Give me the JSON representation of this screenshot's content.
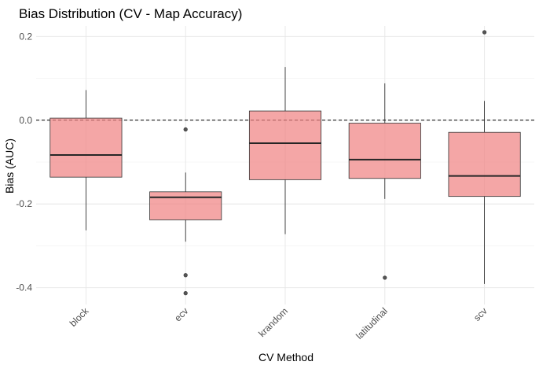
{
  "chart_data": {
    "type": "box",
    "title": "Bias Distribution (CV - Map Accuracy)",
    "xlabel": "CV Method",
    "ylabel": "Bias (AUC)",
    "ylim": [
      -0.44,
      0.225
    ],
    "yticks": [
      0.2,
      0.0,
      -0.2,
      -0.4
    ],
    "ytick_labels": [
      "0.2",
      "0.0",
      "-0.2",
      "-0.4"
    ],
    "reference_line": 0.0,
    "grid": true,
    "fill_color": "#f08080",
    "categories": [
      "block",
      "ecv",
      "krandom",
      "latitudinal",
      "scv"
    ],
    "boxes": [
      {
        "category": "block",
        "whisker_low": -0.263,
        "q1": -0.136,
        "median": -0.083,
        "q3": 0.005,
        "whisker_high": 0.072,
        "outliers": []
      },
      {
        "category": "ecv",
        "whisker_low": -0.29,
        "q1": -0.238,
        "median": -0.184,
        "q3": -0.171,
        "whisker_high": -0.125,
        "outliers": [
          -0.022,
          -0.37,
          -0.413
        ]
      },
      {
        "category": "krandom",
        "whisker_low": -0.272,
        "q1": -0.142,
        "median": -0.055,
        "q3": 0.022,
        "whisker_high": 0.127,
        "outliers": []
      },
      {
        "category": "latitudinal",
        "whisker_low": -0.188,
        "q1": -0.139,
        "median": -0.094,
        "q3": -0.007,
        "whisker_high": 0.088,
        "outliers": [
          -0.376
        ]
      },
      {
        "category": "scv",
        "whisker_low": -0.391,
        "q1": -0.182,
        "median": -0.133,
        "q3": -0.029,
        "whisker_high": 0.046,
        "outliers": [
          0.21
        ]
      }
    ]
  }
}
